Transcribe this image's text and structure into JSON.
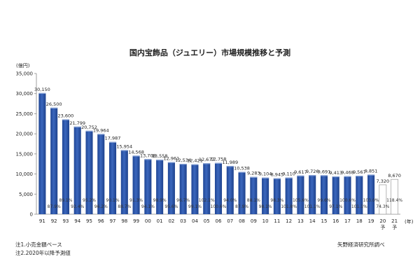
{
  "chart_data": {
    "type": "bar",
    "title": "国内宝飾品（ジュエリー）市場規模推移と予測",
    "unit_label": "(億円)",
    "x_unit_label": "(年)",
    "categories": [
      "91",
      "92",
      "93",
      "94",
      "95",
      "96",
      "97",
      "98",
      "99",
      "00",
      "01",
      "02",
      "03",
      "04",
      "05",
      "06",
      "07",
      "08",
      "09",
      "10",
      "11",
      "12",
      "13",
      "14",
      "15",
      "16",
      "17",
      "18",
      "19",
      "20\n予",
      "21\n予"
    ],
    "values": [
      30150,
      26500,
      23600,
      21799,
      20752,
      19964,
      17987,
      15954,
      14568,
      13708,
      13558,
      12961,
      12534,
      12421,
      12677,
      12758,
      11989,
      10538,
      9283,
      9104,
      8945,
      9110,
      9617,
      9726,
      9691,
      9413,
      9468,
      9567,
      9851,
      7320,
      8670
    ],
    "value_labels": [
      "30,150",
      "26,500",
      "23,600",
      "21,799",
      "20,752",
      "19,964",
      "17,987",
      "15,954",
      "14,568",
      "13,708",
      "13,558",
      "12,961",
      "12,534",
      "12,421",
      "12,677",
      "12,758",
      "11,989",
      "10,538",
      "9,283",
      "9,104",
      "8,945",
      "9,110",
      "9,617",
      "9,726",
      "9,691",
      "9,413",
      "9,468",
      "9,567",
      "9,851",
      "7,320",
      "8,670"
    ],
    "growth_labels": [
      "",
      "87.9%",
      "89.1%",
      "92.4%",
      "95.2%",
      "96.2%",
      "90.1%",
      "88.7%",
      "91.3%",
      "94.1%",
      "98.9%",
      "95.6%",
      "96.7%",
      "99.1%",
      "102.1%",
      "100.6%",
      "94.0%",
      "87.9%",
      "88.1%",
      "98.1%",
      "98.3%",
      "101.8%",
      "105.6%",
      "101.1%",
      "99.6%",
      "97.1%",
      "100.6%",
      "101.1%",
      "103.0%",
      "74.3%",
      "118.4%"
    ],
    "forecast_indices": [
      29,
      30
    ],
    "ylim": [
      0,
      35000
    ],
    "yticks": [
      0,
      5000,
      10000,
      15000,
      20000,
      25000,
      30000,
      35000
    ],
    "ytick_labels": [
      "0",
      "5,000",
      "10,000",
      "15,000",
      "20,000",
      "25,000",
      "30,000",
      "35,000"
    ],
    "grid": false,
    "colors": {
      "bar": "#2b55a8",
      "bar_top": "#8fa8d8",
      "forecast_fill": "#ffffff",
      "forecast_stroke": "#9a9a9a",
      "axis": "#888888"
    }
  },
  "notes": {
    "note1": "注1.小売金額ベース",
    "note2": "注2.2020年以降予測値",
    "source": "矢野経済研究所調べ"
  }
}
